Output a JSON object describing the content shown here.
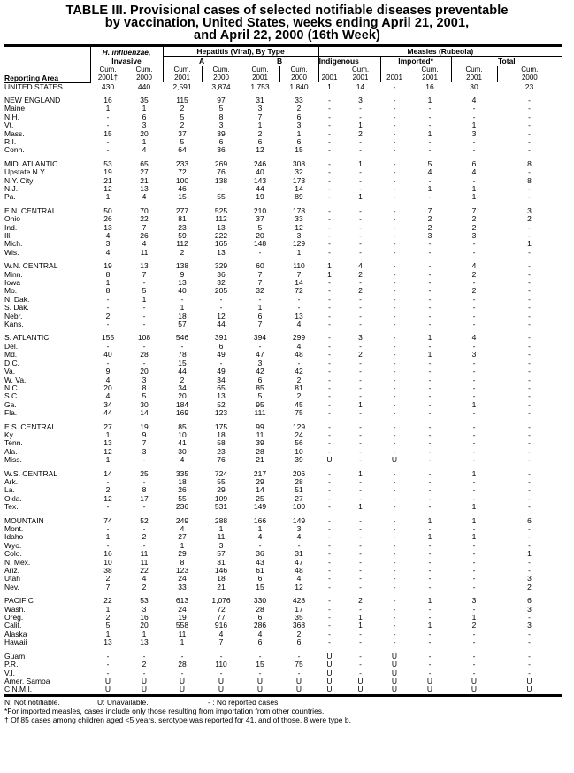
{
  "title": {
    "line1": "TABLE III. Provisional cases of selected notifiable diseases preventable",
    "line2": "by vaccination, United States, weeks ending April 21, 2001,",
    "line3": "and April 22, 2000 (16th Week)"
  },
  "header": {
    "reporting_area": "Reporting Area",
    "hflu": "H. influenzae,",
    "hflu2": "Invasive",
    "hep": "Hepatitis (Viral), By Type",
    "hepA": "A",
    "hepB": "B",
    "measles": "Measles (Rubeola)",
    "indigenous": "Indigenous",
    "imported": "Imported*",
    "total": "Total",
    "cols": [
      "Cum. 2001†",
      "Cum. 2000",
      "Cum. 2001",
      "Cum. 2000",
      "Cum. 2001",
      "Cum. 2000",
      "2001",
      "Cum. 2001",
      "2001",
      "Cum. 2001",
      "Cum. 2001",
      "Cum. 2000"
    ]
  },
  "groups": [
    [
      [
        "UNITED STATES",
        "430",
        "440",
        "2,591",
        "3,874",
        "1,753",
        "1,840",
        "1",
        "14",
        "-",
        "16",
        "30",
        "23"
      ]
    ],
    [
      [
        "NEW ENGLAND",
        "16",
        "35",
        "115",
        "97",
        "31",
        "33",
        "-",
        "3",
        "-",
        "1",
        "4",
        "-"
      ],
      [
        "Maine",
        "1",
        "1",
        "2",
        "5",
        "3",
        "2",
        "-",
        "-",
        "-",
        "-",
        "-",
        "-"
      ],
      [
        "N.H.",
        "-",
        "6",
        "5",
        "8",
        "7",
        "6",
        "-",
        "-",
        "-",
        "-",
        "-",
        "-"
      ],
      [
        "Vt.",
        "-",
        "3",
        "2",
        "3",
        "1",
        "3",
        "-",
        "1",
        "-",
        "-",
        "1",
        "-"
      ],
      [
        "Mass.",
        "15",
        "20",
        "37",
        "39",
        "2",
        "1",
        "-",
        "2",
        "-",
        "1",
        "3",
        "-"
      ],
      [
        "R.I.",
        "-",
        "1",
        "5",
        "6",
        "6",
        "6",
        "-",
        "-",
        "-",
        "-",
        "-",
        "-"
      ],
      [
        "Conn.",
        "-",
        "4",
        "64",
        "36",
        "12",
        "15",
        "-",
        "-",
        "-",
        "-",
        "-",
        "-"
      ]
    ],
    [
      [
        "MID. ATLANTIC",
        "53",
        "65",
        "233",
        "269",
        "246",
        "308",
        "-",
        "1",
        "-",
        "5",
        "6",
        "8"
      ],
      [
        "Upstate N.Y.",
        "19",
        "27",
        "72",
        "76",
        "40",
        "32",
        "-",
        "-",
        "-",
        "4",
        "4",
        "-"
      ],
      [
        "N.Y. City",
        "21",
        "21",
        "100",
        "138",
        "143",
        "173",
        "-",
        "-",
        "-",
        "-",
        "-",
        "8"
      ],
      [
        "N.J.",
        "12",
        "13",
        "46",
        "-",
        "44",
        "14",
        "-",
        "-",
        "-",
        "1",
        "1",
        "-"
      ],
      [
        "Pa.",
        "1",
        "4",
        "15",
        "55",
        "19",
        "89",
        "-",
        "1",
        "-",
        "-",
        "1",
        "-"
      ]
    ],
    [
      [
        "E.N. CENTRAL",
        "50",
        "70",
        "277",
        "525",
        "210",
        "178",
        "-",
        "-",
        "-",
        "7",
        "7",
        "3"
      ],
      [
        "Ohio",
        "26",
        "22",
        "81",
        "112",
        "37",
        "33",
        "-",
        "-",
        "-",
        "2",
        "2",
        "2"
      ],
      [
        "Ind.",
        "13",
        "7",
        "23",
        "13",
        "5",
        "12",
        "-",
        "-",
        "-",
        "2",
        "2",
        "-"
      ],
      [
        "Ill.",
        "4",
        "26",
        "59",
        "222",
        "20",
        "3",
        "-",
        "-",
        "-",
        "3",
        "3",
        "-"
      ],
      [
        "Mich.",
        "3",
        "4",
        "112",
        "165",
        "148",
        "129",
        "-",
        "-",
        "-",
        "-",
        "-",
        "1"
      ],
      [
        "Wis.",
        "4",
        "11",
        "2",
        "13",
        "-",
        "1",
        "-",
        "-",
        "-",
        "-",
        "-",
        "-"
      ]
    ],
    [
      [
        "W.N. CENTRAL",
        "19",
        "13",
        "138",
        "329",
        "60",
        "110",
        "1",
        "4",
        "-",
        "-",
        "4",
        "-"
      ],
      [
        "Minn.",
        "8",
        "7",
        "9",
        "36",
        "7",
        "7",
        "1",
        "2",
        "-",
        "-",
        "2",
        "-"
      ],
      [
        "Iowa",
        "1",
        "-",
        "13",
        "32",
        "7",
        "14",
        "-",
        "-",
        "-",
        "-",
        "-",
        "-"
      ],
      [
        "Mo.",
        "8",
        "5",
        "40",
        "205",
        "32",
        "72",
        "-",
        "2",
        "-",
        "-",
        "2",
        "-"
      ],
      [
        "N. Dak.",
        "-",
        "1",
        "-",
        "-",
        "-",
        "-",
        "-",
        "-",
        "-",
        "-",
        "-",
        "-"
      ],
      [
        "S. Dak.",
        "-",
        "-",
        "1",
        "-",
        "1",
        "-",
        "-",
        "-",
        "-",
        "-",
        "-",
        "-"
      ],
      [
        "Nebr.",
        "2",
        "-",
        "18",
        "12",
        "6",
        "13",
        "-",
        "-",
        "-",
        "-",
        "-",
        "-"
      ],
      [
        "Kans.",
        "-",
        "-",
        "57",
        "44",
        "7",
        "4",
        "-",
        "-",
        "-",
        "-",
        "-",
        "-"
      ]
    ],
    [
      [
        "S. ATLANTIC",
        "155",
        "108",
        "546",
        "391",
        "394",
        "299",
        "-",
        "3",
        "-",
        "1",
        "4",
        "-"
      ],
      [
        "Del.",
        "-",
        "-",
        "-",
        "6",
        "-",
        "4",
        "-",
        "-",
        "-",
        "-",
        "-",
        "-"
      ],
      [
        "Md.",
        "40",
        "28",
        "78",
        "49",
        "47",
        "48",
        "-",
        "2",
        "-",
        "1",
        "3",
        "-"
      ],
      [
        "D.C.",
        "-",
        "-",
        "15",
        "-",
        "3",
        "-",
        "-",
        "-",
        "-",
        "-",
        "-",
        "-"
      ],
      [
        "Va.",
        "9",
        "20",
        "44",
        "49",
        "42",
        "42",
        "-",
        "-",
        "-",
        "-",
        "-",
        "-"
      ],
      [
        "W. Va.",
        "4",
        "3",
        "2",
        "34",
        "6",
        "2",
        "-",
        "-",
        "-",
        "-",
        "-",
        "-"
      ],
      [
        "N.C.",
        "20",
        "8",
        "34",
        "65",
        "85",
        "81",
        "-",
        "-",
        "-",
        "-",
        "-",
        "-"
      ],
      [
        "S.C.",
        "4",
        "5",
        "20",
        "13",
        "5",
        "2",
        "-",
        "-",
        "-",
        "-",
        "-",
        "-"
      ],
      [
        "Ga.",
        "34",
        "30",
        "184",
        "52",
        "95",
        "45",
        "-",
        "1",
        "-",
        "-",
        "1",
        "-"
      ],
      [
        "Fla.",
        "44",
        "14",
        "169",
        "123",
        "111",
        "75",
        "-",
        "-",
        "-",
        "-",
        "-",
        "-"
      ]
    ],
    [
      [
        "E.S. CENTRAL",
        "27",
        "19",
        "85",
        "175",
        "99",
        "129",
        "-",
        "-",
        "-",
        "-",
        "-",
        "-"
      ],
      [
        "Ky.",
        "1",
        "9",
        "10",
        "18",
        "11",
        "24",
        "-",
        "-",
        "-",
        "-",
        "-",
        "-"
      ],
      [
        "Tenn.",
        "13",
        "7",
        "41",
        "58",
        "39",
        "56",
        "-",
        "-",
        "-",
        "-",
        "-",
        "-"
      ],
      [
        "Ala.",
        "12",
        "3",
        "30",
        "23",
        "28",
        "10",
        "-",
        "-",
        "-",
        "-",
        "-",
        "-"
      ],
      [
        "Miss.",
        "1",
        "-",
        "4",
        "76",
        "21",
        "39",
        "U",
        "-",
        "U",
        "-",
        "-",
        "-"
      ]
    ],
    [
      [
        "W.S. CENTRAL",
        "14",
        "25",
        "335",
        "724",
        "217",
        "206",
        "-",
        "1",
        "-",
        "-",
        "1",
        "-"
      ],
      [
        "Ark.",
        "-",
        "-",
        "18",
        "55",
        "29",
        "28",
        "-",
        "-",
        "-",
        "-",
        "-",
        "-"
      ],
      [
        "La.",
        "2",
        "8",
        "26",
        "29",
        "14",
        "51",
        "-",
        "-",
        "-",
        "-",
        "-",
        "-"
      ],
      [
        "Okla.",
        "12",
        "17",
        "55",
        "109",
        "25",
        "27",
        "-",
        "-",
        "-",
        "-",
        "-",
        "-"
      ],
      [
        "Tex.",
        "-",
        "-",
        "236",
        "531",
        "149",
        "100",
        "-",
        "1",
        "-",
        "-",
        "1",
        "-"
      ]
    ],
    [
      [
        "MOUNTAIN",
        "74",
        "52",
        "249",
        "288",
        "166",
        "149",
        "-",
        "-",
        "-",
        "1",
        "1",
        "6"
      ],
      [
        "Mont.",
        "-",
        "-",
        "4",
        "1",
        "1",
        "3",
        "-",
        "-",
        "-",
        "-",
        "-",
        "-"
      ],
      [
        "Idaho",
        "1",
        "2",
        "27",
        "11",
        "4",
        "4",
        "-",
        "-",
        "-",
        "1",
        "1",
        "-"
      ],
      [
        "Wyo.",
        "-",
        "-",
        "1",
        "3",
        "-",
        "-",
        "-",
        "-",
        "-",
        "-",
        "-",
        "-"
      ],
      [
        "Colo.",
        "16",
        "11",
        "29",
        "57",
        "36",
        "31",
        "-",
        "-",
        "-",
        "-",
        "-",
        "1"
      ],
      [
        "N. Mex.",
        "10",
        "11",
        "8",
        "31",
        "43",
        "47",
        "-",
        "-",
        "-",
        "-",
        "-",
        "-"
      ],
      [
        "Ariz.",
        "38",
        "22",
        "123",
        "146",
        "61",
        "48",
        "-",
        "-",
        "-",
        "-",
        "-",
        "-"
      ],
      [
        "Utah",
        "2",
        "4",
        "24",
        "18",
        "6",
        "4",
        "-",
        "-",
        "-",
        "-",
        "-",
        "3"
      ],
      [
        "Nev.",
        "7",
        "2",
        "33",
        "21",
        "15",
        "12",
        "-",
        "-",
        "-",
        "-",
        "-",
        "2"
      ]
    ],
    [
      [
        "PACIFIC",
        "22",
        "53",
        "613",
        "1,076",
        "330",
        "428",
        "-",
        "2",
        "-",
        "1",
        "3",
        "6"
      ],
      [
        "Wash.",
        "1",
        "3",
        "24",
        "72",
        "28",
        "17",
        "-",
        "-",
        "-",
        "-",
        "-",
        "3"
      ],
      [
        "Oreg.",
        "2",
        "16",
        "19",
        "77",
        "6",
        "35",
        "-",
        "1",
        "-",
        "-",
        "1",
        "-"
      ],
      [
        "Calif.",
        "5",
        "20",
        "558",
        "916",
        "286",
        "368",
        "-",
        "1",
        "-",
        "1",
        "2",
        "3"
      ],
      [
        "Alaska",
        "1",
        "1",
        "11",
        "4",
        "4",
        "2",
        "-",
        "-",
        "-",
        "-",
        "-",
        "-"
      ],
      [
        "Hawaii",
        "13",
        "13",
        "1",
        "7",
        "6",
        "6",
        "-",
        "-",
        "-",
        "-",
        "-",
        "-"
      ]
    ],
    [
      [
        "Guam",
        "-",
        "-",
        "-",
        "-",
        "-",
        "-",
        "U",
        "-",
        "U",
        "-",
        "-",
        "-"
      ],
      [
        "P.R.",
        "-",
        "2",
        "28",
        "110",
        "15",
        "75",
        "U",
        "-",
        "U",
        "-",
        "-",
        "-"
      ],
      [
        "V.I.",
        "-",
        "-",
        "-",
        "-",
        "-",
        "-",
        "U",
        "-",
        "U",
        "-",
        "-",
        "-"
      ],
      [
        "Amer. Samoa",
        "U",
        "U",
        "U",
        "U",
        "U",
        "U",
        "U",
        "U",
        "U",
        "U",
        "U",
        "U"
      ],
      [
        "C.N.M.I.",
        "U",
        "U",
        "U",
        "U",
        "U",
        "U",
        "U",
        "U",
        "U",
        "U",
        "U",
        "U"
      ]
    ]
  ],
  "footer": {
    "n": "N: Not notifiable.",
    "u": "U: Unavailable.",
    "dash": "- : No reported cases.",
    "note1": "*For imported measles, cases include only those resulting from importation from other countries.",
    "note2": "† Of 85 cases among children aged <5 years, serotype was reported for 41, and of those, 8 were type b."
  }
}
